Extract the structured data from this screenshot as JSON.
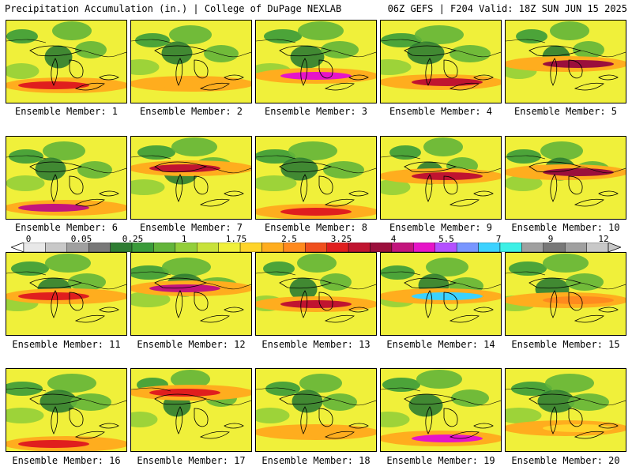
{
  "header": {
    "left": "Precipitation Accumulation (in.) | College of DuPage NEXLAB",
    "right": "06Z GEFS | F204 Valid: 18Z SUN JUN 15 2025"
  },
  "colorbar": {
    "tick_labels": [
      "0",
      "0.05",
      "0.25",
      "1",
      "1.75",
      "2.5",
      "3.25",
      "4",
      "5.5",
      "7",
      "9",
      "12"
    ],
    "colors": [
      "#e8e8e8",
      "#c8c8c8",
      "#a0a0a0",
      "#787878",
      "#2e7d32",
      "#3a9b3a",
      "#63b53a",
      "#93cf3a",
      "#c8e23a",
      "#f0f03a",
      "#ffd42a",
      "#ffad1e",
      "#ff8a1e",
      "#f0501e",
      "#e01e1e",
      "#c01430",
      "#9b0f3c",
      "#c3147d",
      "#e614c8",
      "#b450ff",
      "#7896ff",
      "#3cd2ff",
      "#3cf0e6",
      "#a0a0a0",
      "#787878",
      "#a0a0a0",
      "#c8c8c8"
    ]
  },
  "members": [
    {
      "label": "Ensemble Member: 1"
    },
    {
      "label": "Ensemble Member: 2"
    },
    {
      "label": "Ensemble Member: 3"
    },
    {
      "label": "Ensemble Member: 4"
    },
    {
      "label": "Ensemble Member: 5"
    },
    {
      "label": "Ensemble Member: 6"
    },
    {
      "label": "Ensemble Member: 7"
    },
    {
      "label": "Ensemble Member: 8"
    },
    {
      "label": "Ensemble Member: 9"
    },
    {
      "label": "Ensemble Member: 10"
    },
    {
      "label": "Ensemble Member: 11"
    },
    {
      "label": "Ensemble Member: 12"
    },
    {
      "label": "Ensemble Member: 13"
    },
    {
      "label": "Ensemble Member: 14"
    },
    {
      "label": "Ensemble Member: 15"
    },
    {
      "label": "Ensemble Member: 16"
    },
    {
      "label": "Ensemble Member: 17"
    },
    {
      "label": "Ensemble Member: 18"
    },
    {
      "label": "Ensemble Member: 19"
    },
    {
      "label": "Ensemble Member: 20"
    }
  ]
}
